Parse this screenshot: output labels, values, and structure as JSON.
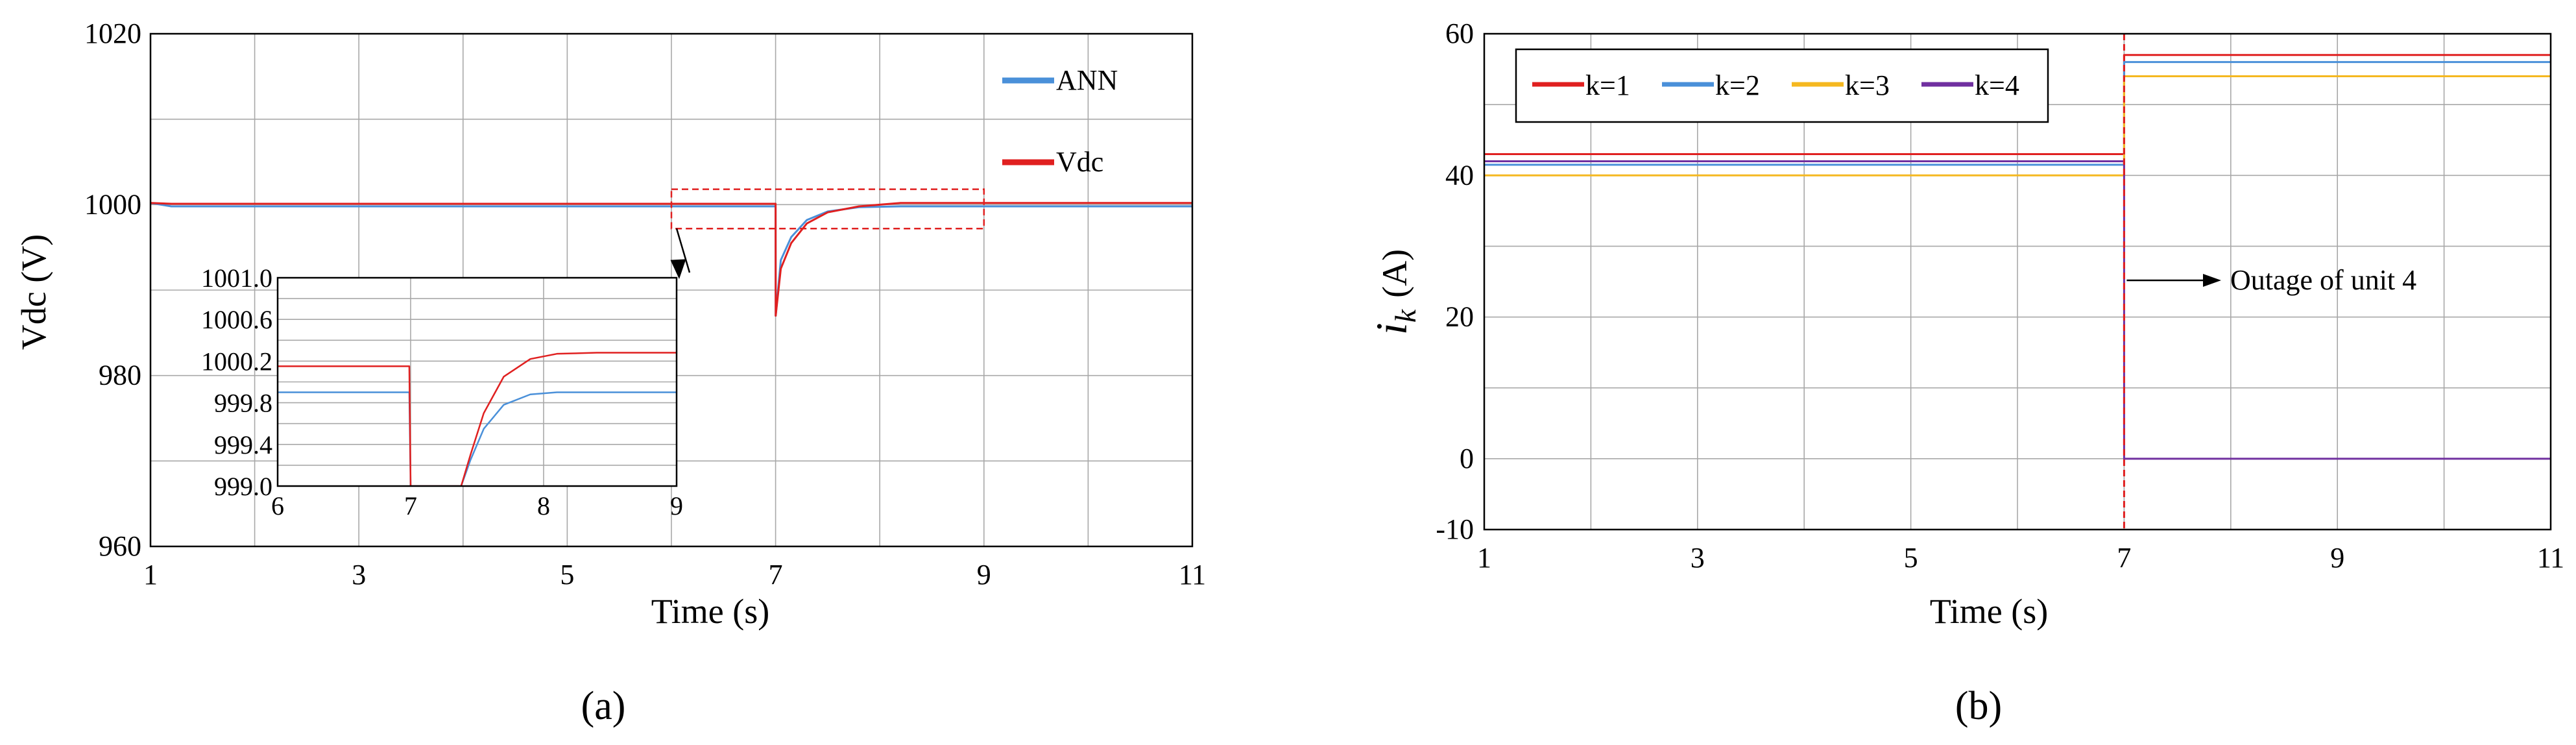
{
  "figure": {
    "panel_a_caption": "(a)",
    "panel_b_caption": "(b)"
  },
  "chart_data": [
    {
      "type": "line",
      "panel": "a",
      "xlabel": "Time (s)",
      "ylabel": "Vdc (V)",
      "xlim": [
        1,
        11
      ],
      "ylim": [
        960,
        1020
      ],
      "xticks": [
        "1",
        "3",
        "5",
        "7",
        "9",
        "11"
      ],
      "yticks": [
        "960",
        "980",
        "1000",
        "1020"
      ],
      "grid": true,
      "legend_position": "top-right",
      "series": [
        {
          "name": "ANN",
          "color": "#4a90d9",
          "x": [
            1,
            1.2,
            6.99,
            7.0,
            7.001,
            7.05,
            7.15,
            7.3,
            7.5,
            7.8,
            8.2,
            8.6,
            11
          ],
          "y": [
            1000.2,
            999.8,
            999.8,
            999.8,
            987,
            993.5,
            996.2,
            998.2,
            999.2,
            999.7,
            999.8,
            999.8,
            999.8
          ]
        },
        {
          "name": "Vdc",
          "color": "#e02020",
          "x": [
            1,
            1.2,
            6.99,
            7.0,
            7.001,
            7.05,
            7.15,
            7.3,
            7.5,
            7.8,
            8.2,
            8.6,
            11
          ],
          "y": [
            1000.2,
            1000.1,
            1000.1,
            1000.1,
            987,
            992.5,
            995.5,
            997.8,
            999.1,
            999.8,
            1000.2,
            1000.2,
            1000.2
          ]
        }
      ],
      "inset": {
        "xlim": [
          6,
          9
        ],
        "ylim": [
          999.0,
          1001.0
        ],
        "xticks": [
          "6",
          "7",
          "8",
          "9"
        ],
        "yticks": [
          "999.0",
          "999.4",
          "999.8",
          "1000.2",
          "1000.6",
          "1001.0"
        ],
        "series": [
          {
            "name": "ANN",
            "color": "#4a90d9",
            "x": [
              6,
              6.99,
              7.0,
              7.38,
              7.45,
              7.55,
              7.7,
              7.9,
              8.1,
              8.4,
              9
            ],
            "y": [
              999.9,
              999.9,
              999.0,
              999.0,
              999.25,
              999.55,
              999.78,
              999.88,
              999.9,
              999.9,
              999.9
            ]
          },
          {
            "name": "Vdc",
            "color": "#e02020",
            "x": [
              6,
              6.99,
              7.0,
              7.38,
              7.45,
              7.55,
              7.7,
              7.9,
              8.1,
              8.4,
              9
            ],
            "y": [
              1000.15,
              1000.15,
              999.0,
              999.0,
              999.3,
              999.7,
              1000.05,
              1000.22,
              1000.27,
              1000.28,
              1000.28
            ]
          }
        ]
      }
    },
    {
      "type": "line",
      "panel": "b",
      "xlabel": "Time (s)",
      "ylabel": "i_k (A)",
      "ylabel_main": "i",
      "ylabel_sub": "k",
      "ylabel_unit": "(A)",
      "xlim": [
        1,
        11
      ],
      "ylim": [
        -10,
        60
      ],
      "xticks": [
        "1",
        "3",
        "5",
        "7",
        "9",
        "11"
      ],
      "yticks": [
        "-10",
        "0",
        "20",
        "40",
        "60"
      ],
      "grid": true,
      "legend_position": "top-left",
      "annotation": "Outage of  unit 4",
      "series": [
        {
          "name": "k=1",
          "color": "#e02020",
          "x": [
            1,
            7,
            7,
            11
          ],
          "y": [
            43,
            43,
            57,
            57
          ]
        },
        {
          "name": "k=2",
          "color": "#4a90d9",
          "x": [
            1,
            7,
            7,
            11
          ],
          "y": [
            41.5,
            41.5,
            56,
            56
          ]
        },
        {
          "name": "k=3",
          "color": "#f5b820",
          "x": [
            1,
            7,
            7,
            11
          ],
          "y": [
            40,
            40,
            54,
            54
          ]
        },
        {
          "name": "k=4",
          "color": "#7030a0",
          "x": [
            1,
            7,
            7,
            11
          ],
          "y": [
            42,
            42,
            0,
            0
          ]
        }
      ]
    }
  ]
}
